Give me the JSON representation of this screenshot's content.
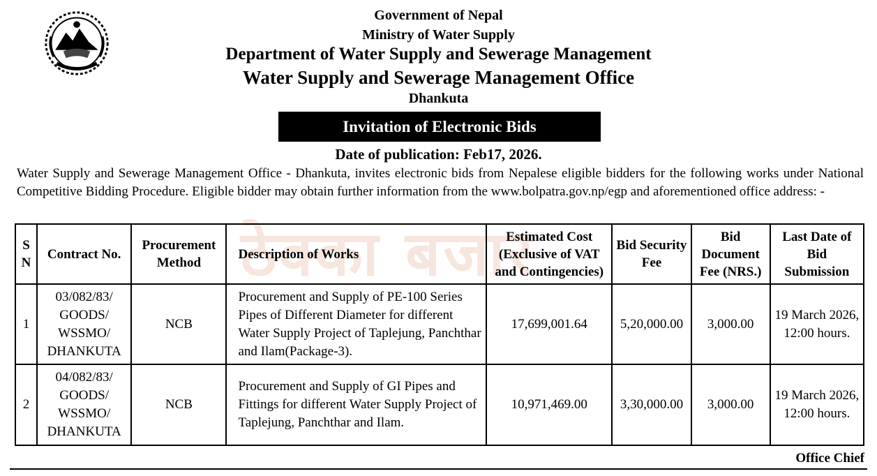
{
  "header": {
    "line1": "Government of Nepal",
    "line2": "Ministry of Water Supply",
    "line3": "Department of Water Supply and Sewerage Management",
    "line4": "Water Supply and Sewerage Management Office",
    "line5": "Dhankuta"
  },
  "emblem_icon": "nepal-emblem-icon",
  "banner": "Invitation of Electronic Bids",
  "publication": "Date of publication: Feb17, 2026.",
  "intro": {
    "office": "Water Supply and Sewerage Management Office - ",
    "text": "Dhankuta, invites electronic bids from Nepalese eligible bidders for the following works under National Competitive Bidding Procedure. Eligible bidder may obtain further information from the www.bolpatra.gov.np/egp and aforementioned office address: -"
  },
  "watermark": "ठेक्का बजार",
  "table": {
    "headers": {
      "sn": "S N",
      "contract": "Contract No.",
      "method": "Procurement Method",
      "desc": "Description of Works",
      "cost": "Estimated Cost (Exclusive of VAT and Contingencies)",
      "security": "Bid Security Fee",
      "docfee": "Bid Document Fee (NRS.)",
      "lastdate": "Last Date of Bid Submission"
    },
    "rows": [
      {
        "sn": "1",
        "contract": "03/082/83/ GOODS/ WSSMO/ DHANKUTA",
        "method": "NCB",
        "desc": "Procurement and Supply of PE-100 Series Pipes of Different Diameter for different Water Supply Project of Taplejung, Panchthar and Ilam(Package-3).",
        "cost": "17,699,001.64",
        "security": "5,20,000.00",
        "docfee": "3,000.00",
        "lastdate": "19 March 2026, 12:00 hours."
      },
      {
        "sn": "2",
        "contract": "04/082/83/ GOODS/ WSSMO/ DHANKUTA",
        "method": "NCB",
        "desc": "Procurement and Supply of GI Pipes and Fittings  for different Water Supply Project of Taplejung, Panchthar and Ilam.",
        "cost": "10,971,469.00",
        "security": "3,30,000.00",
        "docfee": "3,000.00",
        "lastdate": "19 March 2026, 12:00 hours."
      }
    ]
  },
  "signoff": "Office Chief"
}
